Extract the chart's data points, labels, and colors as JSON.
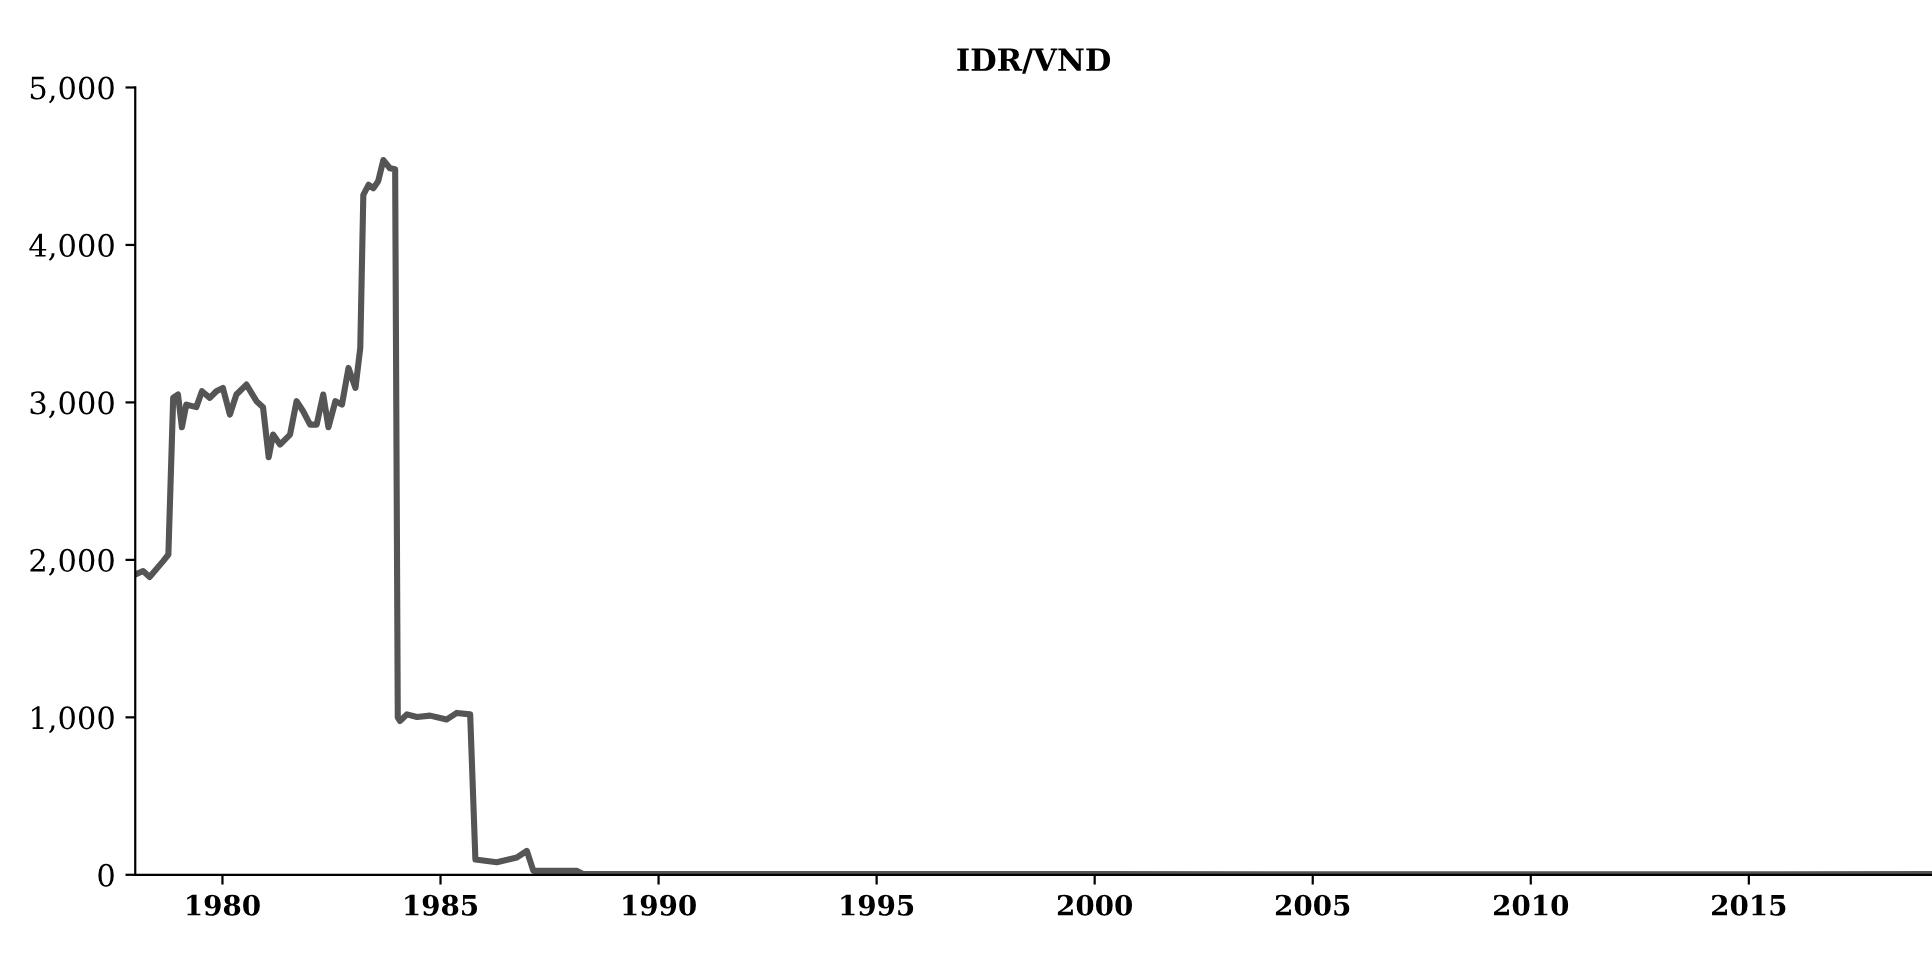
{
  "chart_data": {
    "type": "line",
    "title": "IDR/VND",
    "series": [
      {
        "color": "#555555",
        "x": [
          1978.0,
          1978.18,
          1978.33,
          1978.64,
          1978.76,
          1978.87,
          1978.98,
          1979.07,
          1979.17,
          1979.4,
          1979.53,
          1979.71,
          1979.86,
          1980.01,
          1980.17,
          1980.32,
          1980.55,
          1980.78,
          1980.93,
          1981.06,
          1981.16,
          1981.32,
          1981.55,
          1981.7,
          1981.85,
          1982.01,
          1982.16,
          1982.31,
          1982.43,
          1982.59,
          1982.74,
          1982.89,
          1983.05,
          1983.16,
          1983.23,
          1983.35,
          1983.46,
          1983.57,
          1983.69,
          1983.84,
          1983.96,
          1984.02,
          1984.07,
          1984.23,
          1984.46,
          1984.76,
          1985.14,
          1985.37,
          1985.68,
          1985.8,
          1986.29,
          1986.75,
          1986.98,
          1987.13,
          1988.13,
          1988.28,
          2000,
          2010,
          2019.2
        ],
        "values": [
          1907,
          1929,
          1891,
          1992,
          2034,
          3029,
          3050,
          2842,
          2986,
          2970,
          3071,
          3029,
          3071,
          3092,
          2923,
          3050,
          3113,
          3008,
          2970,
          2652,
          2796,
          2732,
          2796,
          3008,
          2944,
          2859,
          2859,
          3050,
          2842,
          3008,
          2986,
          3219,
          3092,
          3346,
          4318,
          4382,
          4360,
          4404,
          4539,
          4487,
          4480,
          1000,
          977,
          1019,
          1002,
          1011,
          986,
          1028,
          1019,
          97,
          80,
          110,
          152,
          25,
          25,
          4,
          4,
          3,
          4
        ]
      }
    ],
    "xlim": [
      1978,
      2019.2
    ],
    "xticks": [
      1980,
      1985,
      1990,
      1995,
      2000,
      2005,
      2010,
      2015
    ],
    "ylim": [
      0,
      5000
    ],
    "yticks": [
      {
        "value": 0,
        "label": "0"
      },
      {
        "value": 1000,
        "label": "1,000"
      },
      {
        "value": 2000,
        "label": "2,000"
      },
      {
        "value": 3000,
        "label": "3,000"
      },
      {
        "value": 4000,
        "label": "4,000"
      },
      {
        "value": 5000,
        "label": "5,000"
      }
    ],
    "grid": false,
    "line_style": "solid",
    "marker": "none"
  }
}
